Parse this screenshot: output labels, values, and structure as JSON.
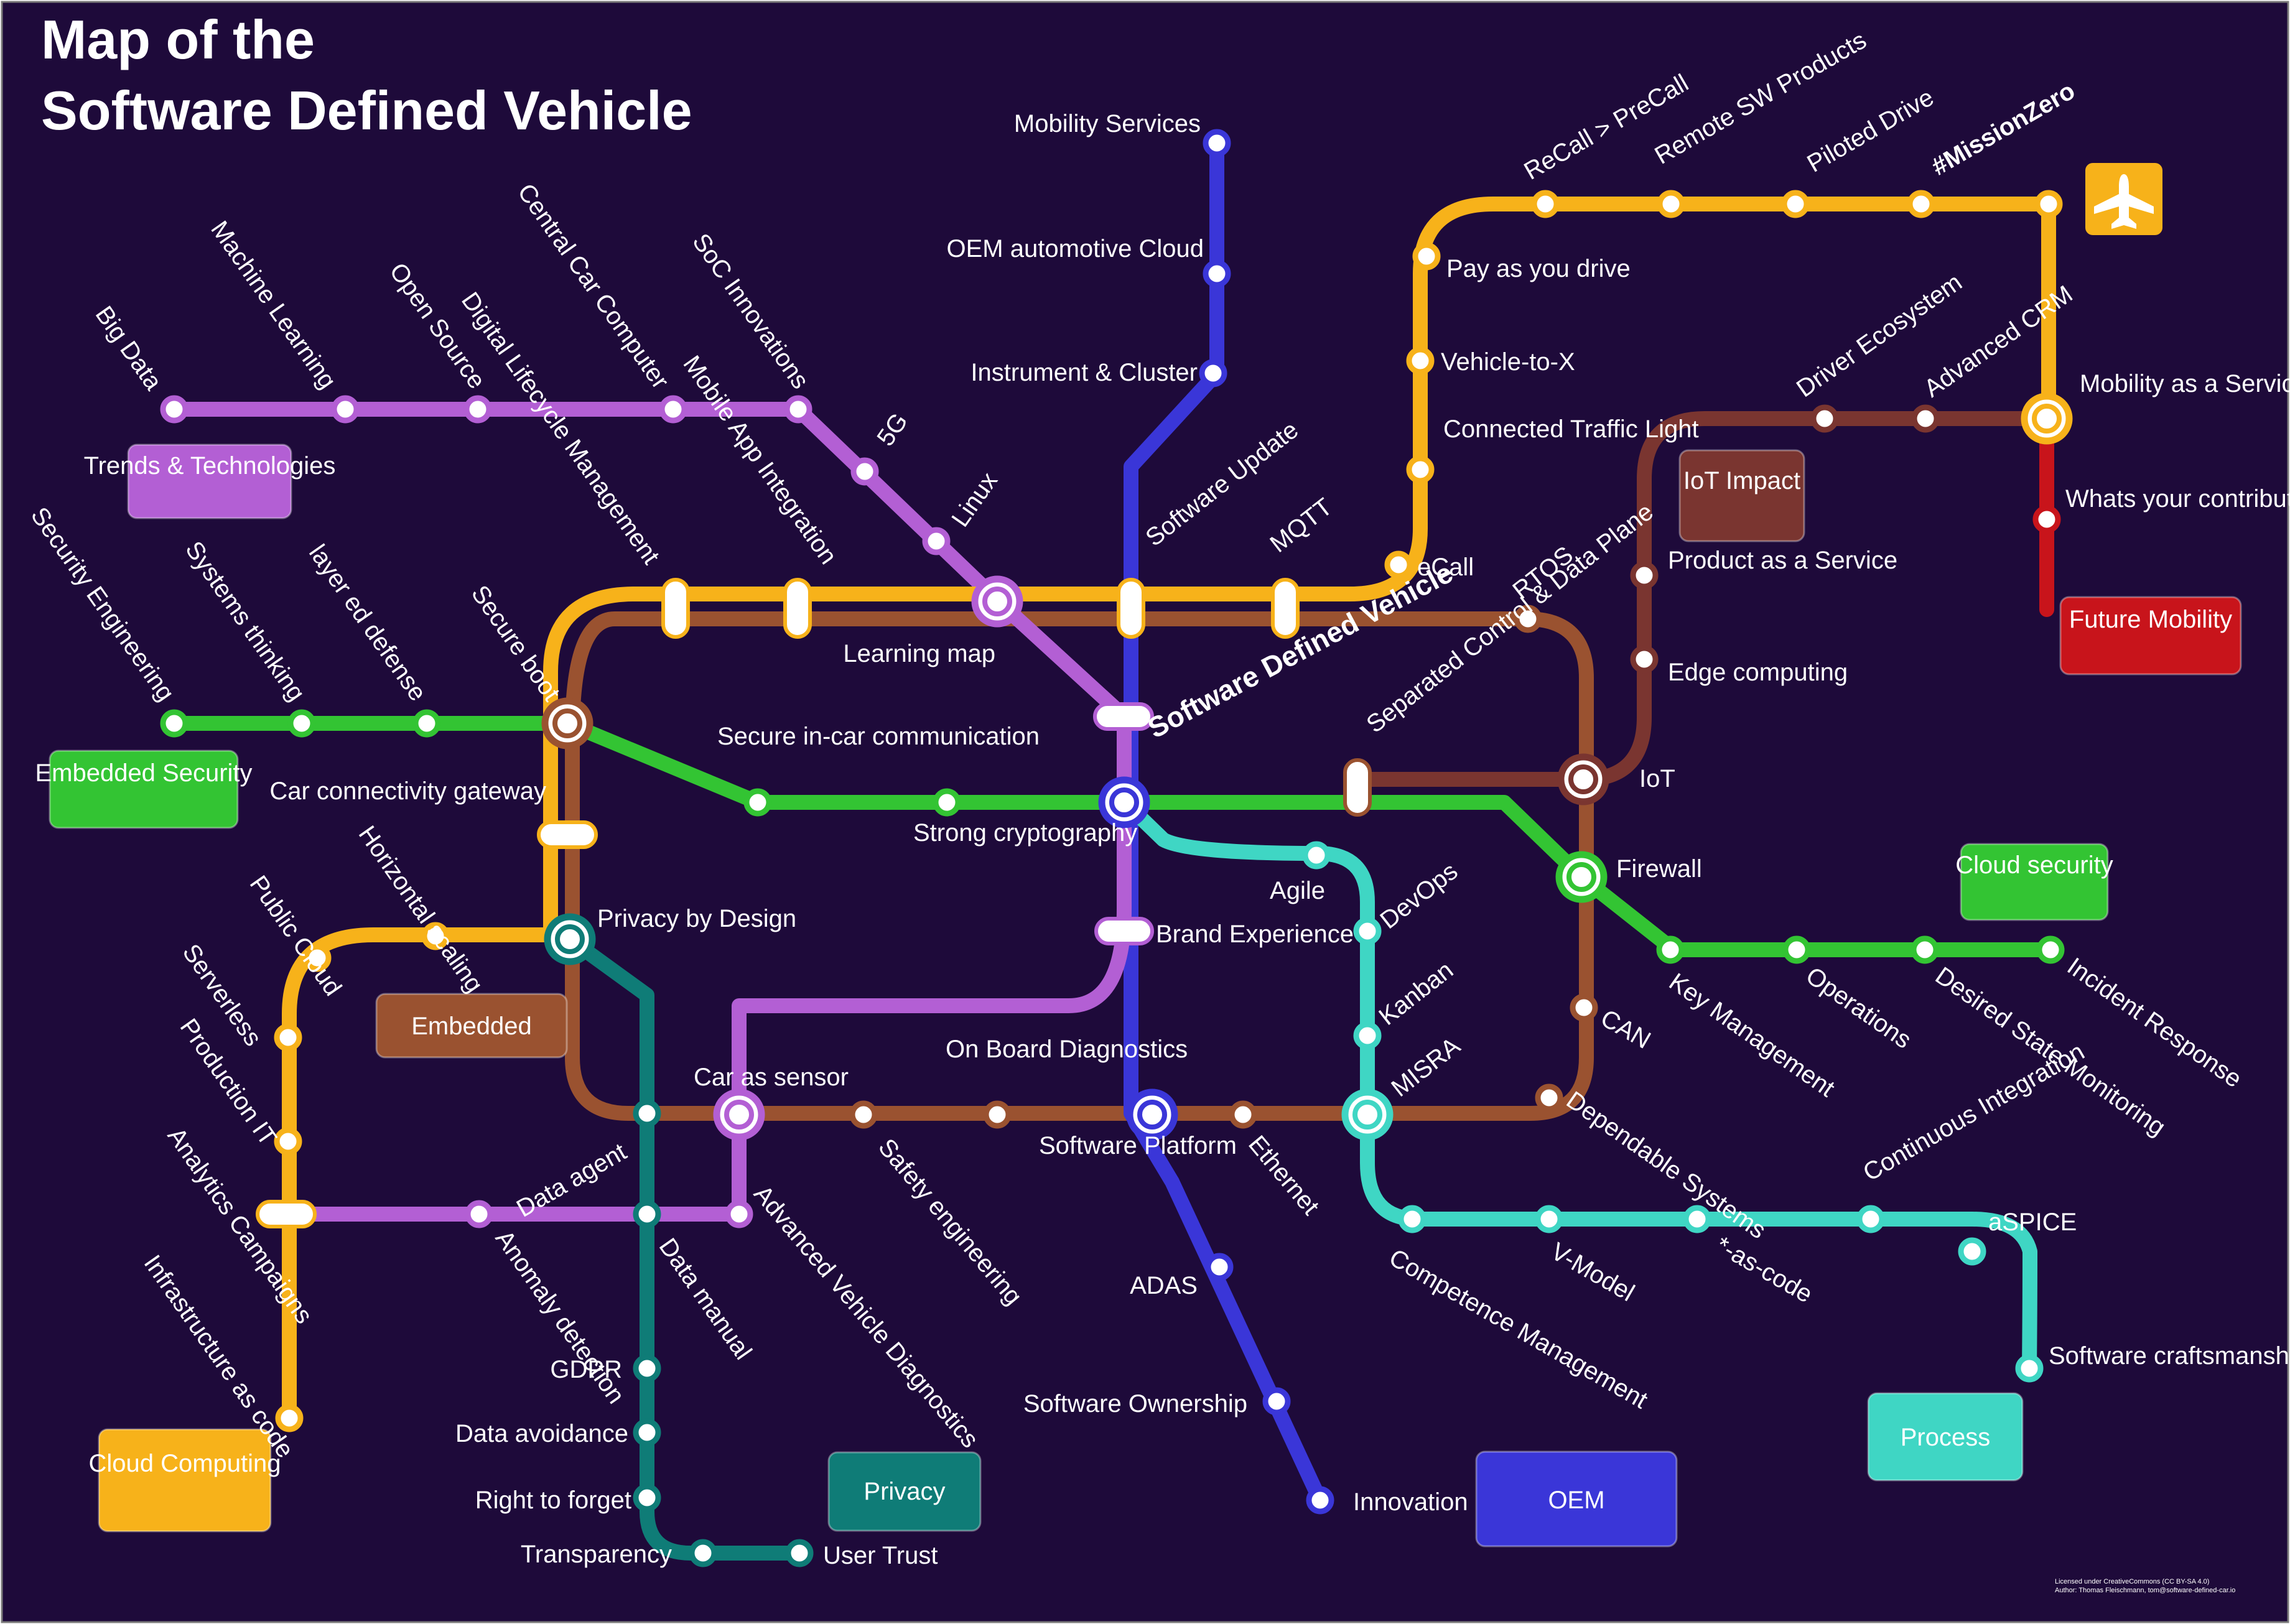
{
  "title": {
    "line1": "Map of the",
    "line2": "Software Defined Vehicle"
  },
  "center_label": "Software Defined Vehicle",
  "license": {
    "line1": "Licensed under CreativeCommons (CC BY-SA 4.0)",
    "line2": "Author: Thomas Fleischmann, tom@software-defined-car.io"
  },
  "colors": {
    "background": "#1e0a3a",
    "trends": "#b35fd4",
    "embedded_security": "#33c433",
    "embedded": "#9a5230",
    "cloud_computing": "#f7b21a",
    "privacy": "#0f7c77",
    "oem": "#3a36d8",
    "process": "#3fd6c4",
    "iot": "#7a3530",
    "mobility": "#f7b21a",
    "future": "#c8141b"
  },
  "line_boxes": {
    "trends": "Trends & Technologies",
    "embedded_security": "Embedded Security",
    "embedded": "Embedded",
    "cloud_computing": "Cloud Computing",
    "privacy": "Privacy",
    "oem": "OEM",
    "process": "Process",
    "iot": "IoT Impact",
    "cloud_security": "Cloud security",
    "future": "Future Mobility"
  },
  "stations": {
    "big_data": "Big Data",
    "machine_learning": "Machine Learning",
    "open_source": "Open Source",
    "central_car_computer": "Central Car Computer",
    "soc_innovations": "SoC Innovations",
    "fiveg": "5G",
    "linux": "Linux",
    "mobile_app": "Mobile App Integration",
    "digital_lifecycle": "Digital Lifecycle Management",
    "security_eng": "Security Engineering",
    "systems_thinking": "Systems thinking",
    "layered_defense": "layer ed defense",
    "secure_boot": "Secure boot",
    "learning_map": "Learning map",
    "secure_comm": "Secure in-car communication",
    "strong_crypto": "Strong cryptography",
    "car_gateway": "Car connectivity gateway",
    "horizontal_scaling": "Horizontal scaling",
    "public_cloud": "Public Cloud",
    "serverless": "Serverless",
    "production_it": "Production IT",
    "analytics": "Analytics Campaigns",
    "infra_code": "Infrastructure as code",
    "privacy_design": "Privacy by Design",
    "data_agent": "Data agent",
    "car_sensor": "Car as sensor",
    "anomaly": "Anomaly detection",
    "data_manual": "Data manual",
    "adv_diag": "Advanced Vehicle Diagnostics",
    "safety_eng": "Safety engineering",
    "obd": "On Board Diagnostics",
    "gdpr": "GDPR",
    "data_avoid": "Data avoidance",
    "right_forget": "Right to forget",
    "transparency": "Transparency",
    "user_trust": "User Trust",
    "mobility_services": "Mobility Services",
    "oem_cloud": "OEM automotive Cloud",
    "instrument_cluster": "Instrument & Cluster",
    "software_update": "Software Update",
    "mqtt": "MQTT",
    "ecall": "eCall",
    "brand_exp": "Brand Experience",
    "sw_platform": "Software Platform",
    "adas": "ADAS",
    "sw_ownership": "Software Ownership",
    "innovation": "Innovation",
    "ethernet": "Ethernet",
    "rtos": "RTOS",
    "separated_planes": "Separated Control & Data Plane",
    "iot": "IoT",
    "can": "CAN",
    "dependable": "Dependable Systems",
    "agile": "Agile",
    "devops": "DevOps",
    "kanban": "Kanban",
    "misra": "MISRA",
    "competence": "Competence Management",
    "v_model": "V-Model",
    "as_code": "*-as-code",
    "ci": "Continuous Integration",
    "aspice": "aSPICE",
    "sw_craft": "Software craftsmanship",
    "firewall": "Firewall",
    "key_mgmt": "Key Management",
    "operations": "Operations",
    "desired_state": "Desired State Monitoring",
    "incident": "Incident Response",
    "pay_drive": "Pay as you drive",
    "v2x": "Vehicle-to-X",
    "traffic_light": "Connected Traffic Light",
    "recall": "ReCall > PreCall",
    "remote_sw": "Remote SW Products",
    "piloted": "Piloted Drive",
    "mission_zero": "#MissionZero",
    "maas": "Mobility as a Service",
    "driver_eco": "Driver Ecosystem",
    "adv_crm": "Advanced CRM",
    "product_service": "Product as a Service",
    "edge": "Edge computing",
    "contribution": "Whats your contribution to..."
  }
}
